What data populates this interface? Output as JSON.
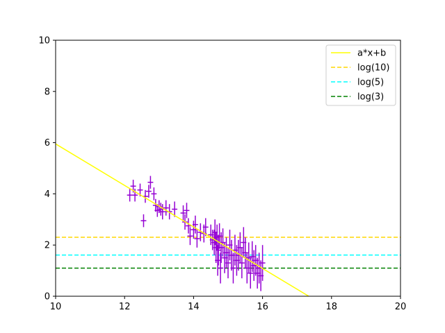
{
  "chart_data": {
    "type": "scatter",
    "xlim": [
      10,
      20
    ],
    "ylim": [
      0,
      10
    ],
    "xticks": [
      "10",
      "12",
      "14",
      "16",
      "18",
      "20"
    ],
    "yticks": [
      "0",
      "2",
      "4",
      "6",
      "8",
      "10"
    ],
    "grid": false,
    "legend_placement": "top-right",
    "series": [
      {
        "kind": "errorbar",
        "color": "#9400d3",
        "points": [
          {
            "x": 12.15,
            "y": 3.95,
            "xerr": 0.08,
            "yerr": 0.25
          },
          {
            "x": 12.25,
            "y": 4.3,
            "xerr": 0.08,
            "yerr": 0.25
          },
          {
            "x": 12.3,
            "y": 3.95,
            "xerr": 0.08,
            "yerr": 0.25
          },
          {
            "x": 12.45,
            "y": 4.15,
            "xerr": 0.08,
            "yerr": 0.25
          },
          {
            "x": 12.55,
            "y": 2.95,
            "xerr": 0.08,
            "yerr": 0.25
          },
          {
            "x": 12.6,
            "y": 3.9,
            "xerr": 0.08,
            "yerr": 0.25
          },
          {
            "x": 12.7,
            "y": 4.1,
            "xerr": 0.08,
            "yerr": 0.25
          },
          {
            "x": 12.75,
            "y": 4.45,
            "xerr": 0.08,
            "yerr": 0.25
          },
          {
            "x": 12.85,
            "y": 4.0,
            "xerr": 0.08,
            "yerr": 0.25
          },
          {
            "x": 12.9,
            "y": 3.55,
            "xerr": 0.08,
            "yerr": 0.25
          },
          {
            "x": 12.95,
            "y": 3.35,
            "xerr": 0.08,
            "yerr": 0.25
          },
          {
            "x": 13.0,
            "y": 3.5,
            "xerr": 0.08,
            "yerr": 0.25
          },
          {
            "x": 13.05,
            "y": 3.4,
            "xerr": 0.08,
            "yerr": 0.25
          },
          {
            "x": 13.1,
            "y": 3.3,
            "xerr": 0.08,
            "yerr": 0.3
          },
          {
            "x": 13.2,
            "y": 3.45,
            "xerr": 0.08,
            "yerr": 0.3
          },
          {
            "x": 13.3,
            "y": 3.3,
            "xerr": 0.08,
            "yerr": 0.3
          },
          {
            "x": 13.45,
            "y": 3.4,
            "xerr": 0.08,
            "yerr": 0.3
          },
          {
            "x": 13.7,
            "y": 3.25,
            "xerr": 0.08,
            "yerr": 0.3
          },
          {
            "x": 13.75,
            "y": 2.9,
            "xerr": 0.08,
            "yerr": 0.3
          },
          {
            "x": 13.8,
            "y": 3.35,
            "xerr": 0.08,
            "yerr": 0.3
          },
          {
            "x": 13.85,
            "y": 2.75,
            "xerr": 0.08,
            "yerr": 0.3
          },
          {
            "x": 13.9,
            "y": 2.35,
            "xerr": 0.08,
            "yerr": 0.35
          },
          {
            "x": 14.0,
            "y": 2.6,
            "xerr": 0.08,
            "yerr": 0.35
          },
          {
            "x": 14.05,
            "y": 2.8,
            "xerr": 0.08,
            "yerr": 0.35
          },
          {
            "x": 14.1,
            "y": 2.25,
            "xerr": 0.08,
            "yerr": 0.35
          },
          {
            "x": 14.2,
            "y": 2.5,
            "xerr": 0.08,
            "yerr": 0.35
          },
          {
            "x": 14.3,
            "y": 2.45,
            "xerr": 0.08,
            "yerr": 0.35
          },
          {
            "x": 14.35,
            "y": 2.7,
            "xerr": 0.08,
            "yerr": 0.35
          },
          {
            "x": 14.5,
            "y": 2.4,
            "xerr": 0.08,
            "yerr": 0.4
          },
          {
            "x": 14.55,
            "y": 2.2,
            "xerr": 0.08,
            "yerr": 0.4
          },
          {
            "x": 14.6,
            "y": 2.1,
            "xerr": 0.08,
            "yerr": 0.5
          },
          {
            "x": 14.62,
            "y": 2.5,
            "xerr": 0.08,
            "yerr": 0.5
          },
          {
            "x": 14.65,
            "y": 1.9,
            "xerr": 0.08,
            "yerr": 0.6
          },
          {
            "x": 14.68,
            "y": 2.3,
            "xerr": 0.08,
            "yerr": 0.5
          },
          {
            "x": 14.7,
            "y": 1.4,
            "xerr": 0.08,
            "yerr": 0.6
          },
          {
            "x": 14.72,
            "y": 1.8,
            "xerr": 0.08,
            "yerr": 0.6
          },
          {
            "x": 14.75,
            "y": 2.35,
            "xerr": 0.08,
            "yerr": 0.5
          },
          {
            "x": 14.78,
            "y": 1.1,
            "xerr": 0.08,
            "yerr": 0.6
          },
          {
            "x": 14.8,
            "y": 1.9,
            "xerr": 0.08,
            "yerr": 0.6
          },
          {
            "x": 14.85,
            "y": 2.1,
            "xerr": 0.08,
            "yerr": 0.55
          },
          {
            "x": 14.9,
            "y": 1.5,
            "xerr": 0.08,
            "yerr": 0.6
          },
          {
            "x": 14.95,
            "y": 1.7,
            "xerr": 0.08,
            "yerr": 0.6
          },
          {
            "x": 15.0,
            "y": 1.3,
            "xerr": 0.08,
            "yerr": 0.6
          },
          {
            "x": 15.05,
            "y": 2.0,
            "xerr": 0.08,
            "yerr": 0.6
          },
          {
            "x": 15.1,
            "y": 1.6,
            "xerr": 0.08,
            "yerr": 0.6
          },
          {
            "x": 15.15,
            "y": 1.1,
            "xerr": 0.08,
            "yerr": 0.6
          },
          {
            "x": 15.2,
            "y": 1.8,
            "xerr": 0.08,
            "yerr": 0.6
          },
          {
            "x": 15.25,
            "y": 1.4,
            "xerr": 0.08,
            "yerr": 0.6
          },
          {
            "x": 15.3,
            "y": 1.6,
            "xerr": 0.08,
            "yerr": 0.6
          },
          {
            "x": 15.35,
            "y": 1.9,
            "xerr": 0.08,
            "yerr": 0.6
          },
          {
            "x": 15.4,
            "y": 1.3,
            "xerr": 0.08,
            "yerr": 0.6
          },
          {
            "x": 15.45,
            "y": 2.1,
            "xerr": 0.08,
            "yerr": 0.6
          },
          {
            "x": 15.5,
            "y": 1.7,
            "xerr": 0.08,
            "yerr": 0.6
          },
          {
            "x": 15.55,
            "y": 1.1,
            "xerr": 0.08,
            "yerr": 0.6
          },
          {
            "x": 15.6,
            "y": 1.5,
            "xerr": 0.08,
            "yerr": 0.6
          },
          {
            "x": 15.65,
            "y": 0.9,
            "xerr": 0.08,
            "yerr": 0.6
          },
          {
            "x": 15.7,
            "y": 1.55,
            "xerr": 0.08,
            "yerr": 0.6
          },
          {
            "x": 15.75,
            "y": 1.2,
            "xerr": 0.08,
            "yerr": 0.6
          },
          {
            "x": 15.8,
            "y": 1.4,
            "xerr": 0.08,
            "yerr": 0.6
          },
          {
            "x": 15.85,
            "y": 0.9,
            "xerr": 0.08,
            "yerr": 0.6
          },
          {
            "x": 15.9,
            "y": 1.1,
            "xerr": 0.08,
            "yerr": 0.6
          },
          {
            "x": 15.95,
            "y": 0.8,
            "xerr": 0.08,
            "yerr": 0.6
          },
          {
            "x": 16.0,
            "y": 1.3,
            "xerr": 0.08,
            "yerr": 0.7
          }
        ]
      },
      {
        "name": "a*x+b",
        "kind": "line",
        "style": "solid",
        "color": "#ffff00",
        "x": [
          10,
          17.34
        ],
        "y": [
          5.95,
          0
        ]
      },
      {
        "name": "log(10)",
        "kind": "hline",
        "style": "dashed",
        "color": "#ffd700",
        "y": 2.302585
      },
      {
        "name": "log(5)",
        "kind": "hline",
        "style": "dashed",
        "color": "#00ffff",
        "y": 1.609438
      },
      {
        "name": "log(3)",
        "kind": "hline",
        "style": "dashed",
        "color": "#008000",
        "y": 1.098612
      }
    ]
  }
}
